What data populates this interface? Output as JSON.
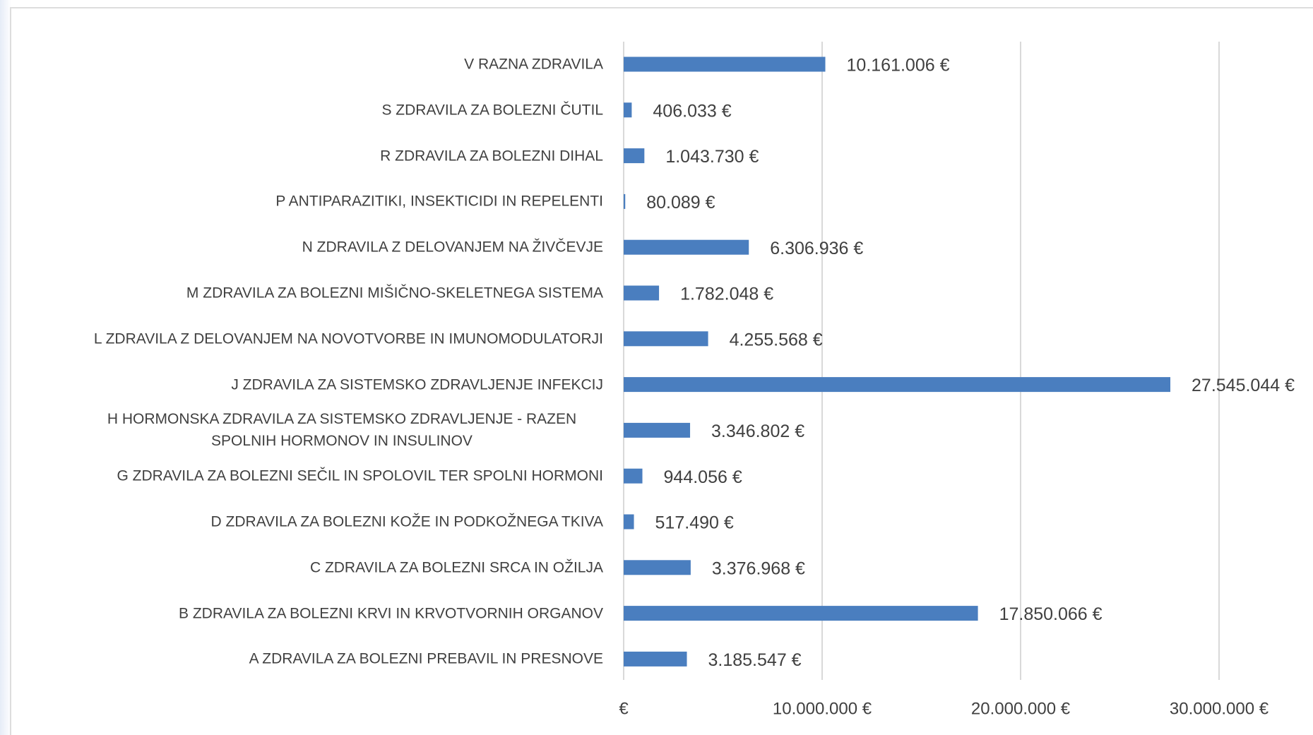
{
  "chart_data": {
    "type": "barh",
    "categories": [
      "V RAZNA ZDRAVILA",
      "S ZDRAVILA ZA BOLEZNI ČUTIL",
      "R ZDRAVILA ZA BOLEZNI DIHAL",
      "P ANTIPARAZITIKI, INSEKTICIDI IN REPELENTI",
      "N ZDRAVILA Z DELOVANJEM NA ŽIVČEVJE",
      "M ZDRAVILA ZA BOLEZNI MIŠIČNO-SKELETNEGA SISTEMA",
      "L ZDRAVILA Z DELOVANJEM NA NOVOTVORBE IN IMUNOMODULATORJI",
      "J ZDRAVILA ZA SISTEMSKO ZDRAVLJENJE INFEKCIJ",
      "H HORMONSKA ZDRAVILA ZA SISTEMSKO ZDRAVLJENJE - RAZEN SPOLNIH HORMONOV IN INSULINOV",
      "G ZDRAVILA ZA BOLEZNI SEČIL IN SPOLOVIL TER SPOLNI HORMONI",
      "D ZDRAVILA ZA BOLEZNI KOŽE IN PODKOŽNEGA TKIVA",
      "C ZDRAVILA ZA BOLEZNI SRCA IN OŽILJA",
      "B ZDRAVILA ZA BOLEZNI KRVI IN KRVOTVORNIH ORGANOV",
      "A ZDRAVILA ZA BOLEZNI PREBAVIL IN PRESNOVE"
    ],
    "values": [
      10161006,
      406033,
      1043730,
      80089,
      6306936,
      1782048,
      4255568,
      27545044,
      3346802,
      944056,
      517490,
      3376968,
      17850066,
      3185547
    ],
    "value_labels": [
      "10.161.006 €",
      "406.033 €",
      "1.043.730 €",
      "80.089 €",
      "6.306.936 €",
      "1.782.048 €",
      "4.255.568 €",
      "27.545.044 €",
      "3.346.802 €",
      "944.056 €",
      "517.490 €",
      "3.376.968 €",
      "17.850.066 €",
      "3.185.547 €"
    ],
    "color": "#4a7ebf",
    "xlim": [
      0,
      30000000
    ],
    "xticks": [
      {
        "value": 0,
        "label": "€"
      },
      {
        "value": 10000000,
        "label": "10.000.000 €"
      },
      {
        "value": 20000000,
        "label": "20.000.000 €"
      },
      {
        "value": 30000000,
        "label": "30.000.000 €"
      }
    ],
    "grid": true
  }
}
